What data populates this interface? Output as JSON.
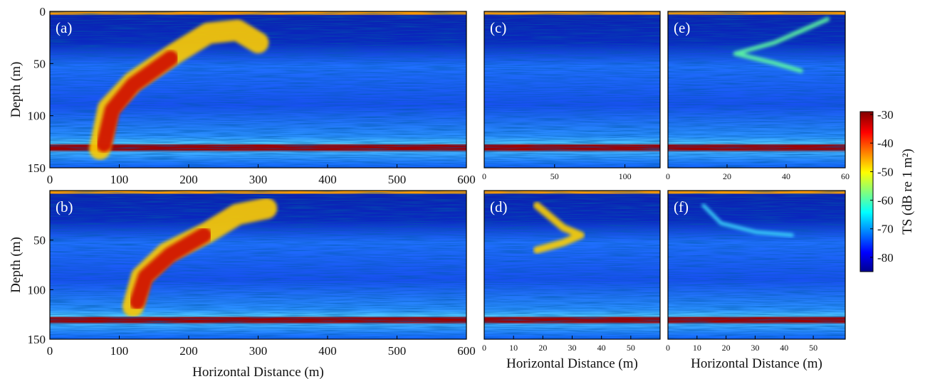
{
  "chart_data": [
    {
      "type": "heatmap",
      "panel_label": "(a)",
      "ylabel": "Depth (m)",
      "xlim": [
        0,
        600
      ],
      "xticks": [
        0,
        100,
        200,
        300,
        400,
        500,
        600
      ],
      "ylim": [
        0,
        150
      ],
      "yticks": [
        0,
        50,
        100,
        150
      ],
      "y_reversed": true
    },
    {
      "type": "heatmap",
      "panel_label": "(b)",
      "ylabel": "Depth (m)",
      "xlabel": "Horizontal Distance (m)",
      "xlim": [
        0,
        600
      ],
      "xticks": [
        0,
        100,
        200,
        300,
        400,
        500,
        600
      ],
      "ylim": [
        0,
        150
      ],
      "yticks": [
        50,
        100,
        150
      ],
      "y_reversed": true
    },
    {
      "type": "heatmap",
      "panel_label": "(c)",
      "xlim": [
        0,
        125
      ],
      "xticks": [
        0,
        50,
        100
      ],
      "ylim": [
        0,
        150
      ],
      "y_reversed": true
    },
    {
      "type": "heatmap",
      "panel_label": "(d)",
      "xlabel": "Horizontal Distance (m)",
      "xlim": [
        0,
        60
      ],
      "xticks": [
        0,
        10,
        20,
        30,
        40,
        50
      ],
      "ylim": [
        0,
        150
      ],
      "y_reversed": true
    },
    {
      "type": "heatmap",
      "panel_label": "(e)",
      "xlim": [
        0,
        60
      ],
      "xticks": [
        0,
        20,
        40,
        60
      ],
      "ylim": [
        0,
        150
      ],
      "y_reversed": true
    },
    {
      "type": "heatmap",
      "panel_label": "(f)",
      "xlabel": "Horizontal Distance (m)",
      "xlim": [
        0,
        61
      ],
      "xticks": [
        0,
        10,
        20,
        30,
        40,
        50
      ],
      "ylim": [
        0,
        150
      ],
      "y_reversed": true
    },
    {
      "type": "colorbar",
      "label": "TS (dB re 1 m²)",
      "colormap": "jet",
      "ylim": [
        -85,
        -29
      ],
      "yticks": [
        -30,
        -40,
        -50,
        -60,
        -70,
        -80
      ]
    }
  ]
}
